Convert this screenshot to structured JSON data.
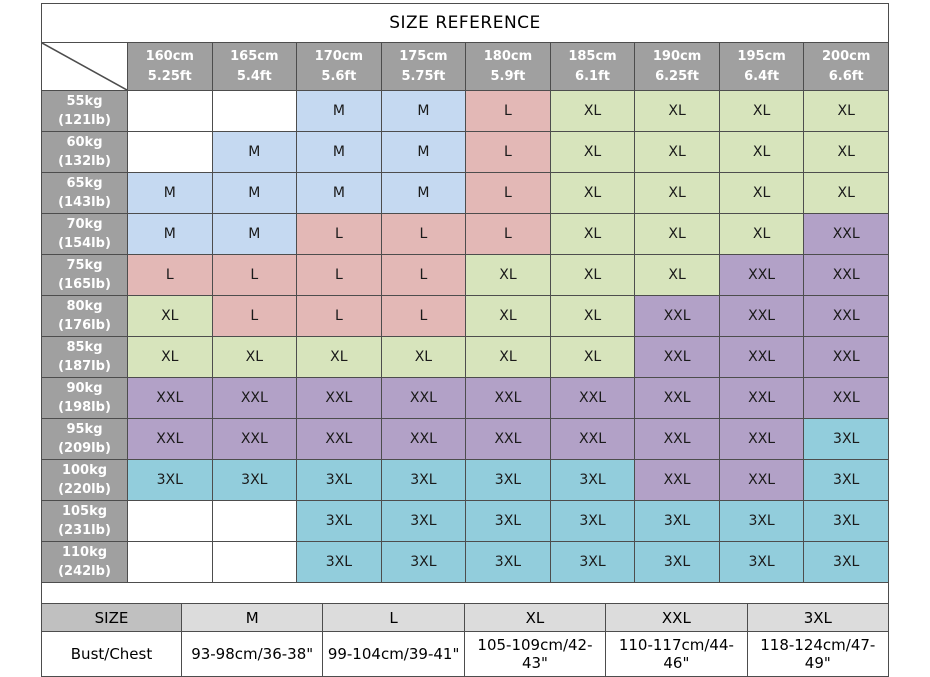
{
  "title": "SIZE REFERENCE",
  "colors": {
    "header_bg": "#A0A0A0",
    "header_text": "#FFFFFF",
    "grid_border": "#4D4D4D",
    "footer_label_bg": "#C0C0C0",
    "footer_size_bg": "#DCDCDC",
    "empty_cell": "#FFFFFF",
    "size_fill": {
      "M": "#C5D9F1",
      "L": "#E3B8B6",
      "XL": "#D7E4BC",
      "XXL": "#B2A1C7",
      "3XL": "#92CDDC"
    }
  },
  "size_grid": {
    "height_headers": [
      {
        "cm": "160cm",
        "ft": "5.25ft"
      },
      {
        "cm": "165cm",
        "ft": "5.4ft"
      },
      {
        "cm": "170cm",
        "ft": "5.6ft"
      },
      {
        "cm": "175cm",
        "ft": "5.75ft"
      },
      {
        "cm": "180cm",
        "ft": "5.9ft"
      },
      {
        "cm": "185cm",
        "ft": "6.1ft"
      },
      {
        "cm": "190cm",
        "ft": "6.25ft"
      },
      {
        "cm": "195cm",
        "ft": "6.4ft"
      },
      {
        "cm": "200cm",
        "ft": "6.6ft"
      }
    ],
    "rows": [
      {
        "kg": "55kg",
        "lb": "(121lb)",
        "sizes": [
          "",
          "",
          "M",
          "M",
          "L",
          "XL",
          "XL",
          "XL",
          "XL"
        ]
      },
      {
        "kg": "60kg",
        "lb": "(132lb)",
        "sizes": [
          "",
          "M",
          "M",
          "M",
          "L",
          "XL",
          "XL",
          "XL",
          "XL"
        ]
      },
      {
        "kg": "65kg",
        "lb": "(143lb)",
        "sizes": [
          "M",
          "M",
          "M",
          "M",
          "L",
          "XL",
          "XL",
          "XL",
          "XL"
        ]
      },
      {
        "kg": "70kg",
        "lb": "(154lb)",
        "sizes": [
          "M",
          "M",
          "L",
          "L",
          "L",
          "XL",
          "XL",
          "XL",
          "XXL"
        ]
      },
      {
        "kg": "75kg",
        "lb": "(165lb)",
        "sizes": [
          "L",
          "L",
          "L",
          "L",
          "XL",
          "XL",
          "XL",
          "XXL",
          "XXL"
        ]
      },
      {
        "kg": "80kg",
        "lb": "(176lb)",
        "sizes": [
          "XL",
          "L",
          "L",
          "L",
          "XL",
          "XL",
          "XXL",
          "XXL",
          "XXL"
        ]
      },
      {
        "kg": "85kg",
        "lb": "(187lb)",
        "sizes": [
          "XL",
          "XL",
          "XL",
          "XL",
          "XL",
          "XL",
          "XXL",
          "XXL",
          "XXL"
        ]
      },
      {
        "kg": "90kg",
        "lb": "(198lb)",
        "sizes": [
          "XXL",
          "XXL",
          "XXL",
          "XXL",
          "XXL",
          "XXL",
          "XXL",
          "XXL",
          "XXL"
        ]
      },
      {
        "kg": "95kg",
        "lb": "(209lb)",
        "sizes": [
          "XXL",
          "XXL",
          "XXL",
          "XXL",
          "XXL",
          "XXL",
          "XXL",
          "XXL",
          "3XL"
        ]
      },
      {
        "kg": "100kg",
        "lb": "(220lb)",
        "sizes": [
          "3XL",
          "3XL",
          "3XL",
          "3XL",
          "3XL",
          "3XL",
          "XXL",
          "XXL",
          "3XL"
        ]
      },
      {
        "kg": "105kg",
        "lb": "(231lb)",
        "sizes": [
          "",
          "",
          "3XL",
          "3XL",
          "3XL",
          "3XL",
          "3XL",
          "3XL",
          "3XL"
        ]
      },
      {
        "kg": "110kg",
        "lb": "(242lb)",
        "sizes": [
          "",
          "",
          "3XL",
          "3XL",
          "3XL",
          "3XL",
          "3XL",
          "3XL",
          "3XL"
        ]
      }
    ]
  },
  "measurements": {
    "header_label": "SIZE",
    "row_label": "Bust/Chest",
    "sizes": [
      "M",
      "L",
      "XL",
      "XXL",
      "3XL"
    ],
    "bust_chest": [
      "93-98cm/36-38\"",
      "99-104cm/39-41\"",
      "105-109cm/42-43\"",
      "110-117cm/44-46\"",
      "118-124cm/47-49\""
    ]
  },
  "chart_data": {
    "type": "table",
    "title": "SIZE REFERENCE",
    "column_headers": [
      "160cm 5.25ft",
      "165cm 5.4ft",
      "170cm 5.6ft",
      "175cm 5.75ft",
      "180cm 5.9ft",
      "185cm 6.1ft",
      "190cm 6.25ft",
      "195cm 6.4ft",
      "200cm 6.6ft"
    ],
    "row_headers": [
      "55kg (121lb)",
      "60kg (132lb)",
      "65kg (143lb)",
      "70kg (154lb)",
      "75kg (165lb)",
      "80kg (176lb)",
      "85kg (187lb)",
      "90kg (198lb)",
      "95kg (209lb)",
      "100kg (220lb)",
      "105kg (231lb)",
      "110kg (242lb)"
    ],
    "cells": [
      [
        "",
        "",
        "M",
        "M",
        "L",
        "XL",
        "XL",
        "XL",
        "XL"
      ],
      [
        "",
        "M",
        "M",
        "M",
        "L",
        "XL",
        "XL",
        "XL",
        "XL"
      ],
      [
        "M",
        "M",
        "M",
        "M",
        "L",
        "XL",
        "XL",
        "XL",
        "XL"
      ],
      [
        "M",
        "M",
        "L",
        "L",
        "L",
        "XL",
        "XL",
        "XL",
        "XXL"
      ],
      [
        "L",
        "L",
        "L",
        "L",
        "XL",
        "XL",
        "XL",
        "XXL",
        "XXL"
      ],
      [
        "XL",
        "L",
        "L",
        "L",
        "XL",
        "XL",
        "XXL",
        "XXL",
        "XXL"
      ],
      [
        "XL",
        "XL",
        "XL",
        "XL",
        "XL",
        "XL",
        "XXL",
        "XXL",
        "XXL"
      ],
      [
        "XXL",
        "XXL",
        "XXL",
        "XXL",
        "XXL",
        "XXL",
        "XXL",
        "XXL",
        "XXL"
      ],
      [
        "XXL",
        "XXL",
        "XXL",
        "XXL",
        "XXL",
        "XXL",
        "XXL",
        "XXL",
        "3XL"
      ],
      [
        "3XL",
        "3XL",
        "3XL",
        "3XL",
        "3XL",
        "3XL",
        "XXL",
        "XXL",
        "3XL"
      ],
      [
        "",
        "",
        "3XL",
        "3XL",
        "3XL",
        "3XL",
        "3XL",
        "3XL",
        "3XL"
      ],
      [
        "",
        "",
        "3XL",
        "3XL",
        "3XL",
        "3XL",
        "3XL",
        "3XL",
        "3XL"
      ]
    ],
    "cell_color_legend": {
      "M": "#C5D9F1",
      "L": "#E3B8B6",
      "XL": "#D7E4BC",
      "XXL": "#B2A1C7",
      "3XL": "#92CDDC",
      "": "#FFFFFF"
    },
    "measurement_table": {
      "column_headers": [
        "SIZE",
        "M",
        "L",
        "XL",
        "XXL",
        "3XL"
      ],
      "rows": [
        [
          "Bust/Chest",
          "93-98cm/36-38\"",
          "99-104cm/39-41\"",
          "105-109cm/42-43\"",
          "110-117cm/44-46\"",
          "118-124cm/47-49\""
        ]
      ]
    }
  }
}
